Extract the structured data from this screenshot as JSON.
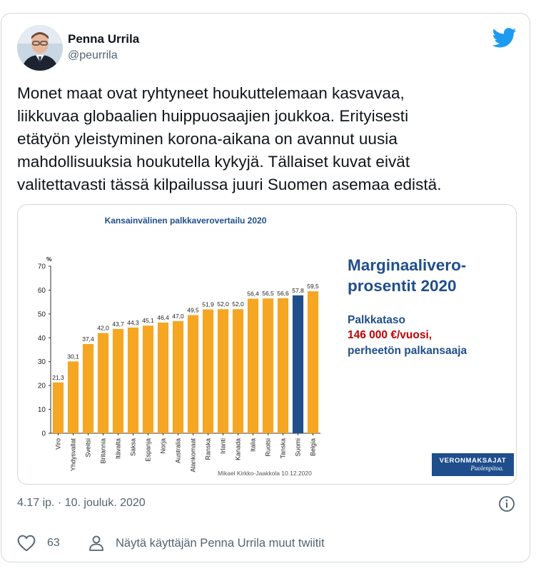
{
  "tweet": {
    "author_name": "Penna Urrila",
    "author_handle": "@peurrila",
    "text": "Monet maat ovat ryhtyneet houkuttelemaan kasvavaa,\nliikkuvaa globaalien huippuosaajien joukkoa. Erityisesti\netätyön yleistyminen korona-aikana on avannut uusia\nmahdollisuuksia houkutella kykyjä. Tällaiset kuvat eivät\nvalitettavasti tässä kilpailussa juuri Suomen asemaa edistä.",
    "timestamp": "4.17 ip. · 10. jouluk. 2020",
    "like_count": "63",
    "more_tweets_label": "Näytä käyttäjän Penna Urrila muut twiitit",
    "brand_color": "#1d9bf0"
  },
  "media": {
    "headline": "Marginaalivero-\nprosentit 2020",
    "salary_label": "Palkkataso",
    "salary_value": "146 000 €/vuosi,",
    "salary_note": "perheetön palkansaaja",
    "credit": "Mikael Kirkko-Jaakkola  10.12.2020",
    "logo_main": "VERONMAKSAJAT",
    "logo_sub": "Puolenpitoa."
  },
  "chart_data": {
    "type": "bar",
    "title": "Kansainvälinen palkkaverovertailu 2020",
    "ylabel": "%",
    "ylim": [
      0,
      70
    ],
    "yticks": [
      0,
      10,
      20,
      30,
      40,
      50,
      60,
      70
    ],
    "grid": false,
    "categories": [
      "Viro",
      "Yhdysvallat",
      "Sveitsi",
      "Britannia",
      "Itävalta",
      "Saksa",
      "Espanja",
      "Norja",
      "Australia",
      "Alankomaat",
      "Ranska",
      "Irlanti",
      "Kanada",
      "Italia",
      "Ruotsi",
      "Tanska",
      "Suomi",
      "Belgia"
    ],
    "values": [
      21.3,
      30.1,
      37.4,
      42.0,
      43.7,
      44.3,
      45.1,
      46.4,
      47.0,
      49.5,
      51.9,
      52.0,
      52.0,
      56.4,
      56.5,
      56.6,
      57.8,
      59.5
    ],
    "labels": [
      "21,3",
      "30,1",
      "37,4",
      "42,0",
      "43,7",
      "44,3",
      "45,1",
      "46,4",
      "47,0",
      "49,5",
      "51,9",
      "52,0",
      "52,0",
      "56,4",
      "56,5",
      "56,6",
      "57,8",
      "59,5"
    ],
    "bar_color": "#f5a623",
    "highlight_color": "#1f4e8c",
    "highlight_category": "Suomi"
  }
}
